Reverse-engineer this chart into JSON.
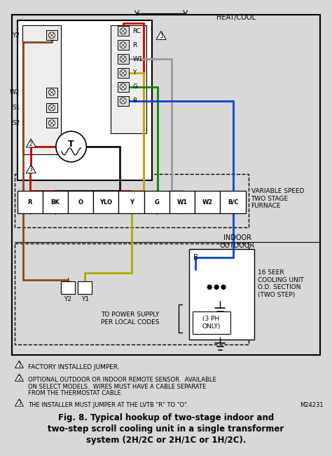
{
  "bg_color": "#d8d8d8",
  "white": "#ffffff",
  "title_line1": "Fig. 8. Typical hookup of two-stage indoor and",
  "title_line2": "two-step scroll cooling unit in a single transformer",
  "title_line3": "system (2H/2C or 2H/1C or 1H/2C).",
  "heat_cool_label": "HEAT/COOL",
  "thermostat_left_labels": [
    "Y2",
    "W2",
    "S1",
    "S2"
  ],
  "thermostat_right_labels": [
    "RC",
    "R",
    "W1",
    "Y",
    "G",
    "B"
  ],
  "furnace_terminals": [
    "R",
    "BK",
    "O",
    "YLO",
    "Y",
    "G",
    "W1",
    "W2",
    "B/C"
  ],
  "furnace_label": "VARIABLE SPEED\nTWO STAGE\nFURNACE",
  "indoor_label": "INDOOR",
  "outdoor_label": "OUTDOOR",
  "cooling_label": "16 SEER\nCOOLING UNIT\nO.D. SECTION\n(TWO STEP)",
  "outdoor_terminals": [
    "Y2",
    "Y1"
  ],
  "B_label": "B",
  "power_label": "TO POWER SUPPLY\nPER LOCAL CODES",
  "ph_label": "(3 PH\nONLY)",
  "note1": "FACTORY INSTALLED JUMPER.",
  "note2_line1": "OPTIONAL OUTDOOR OR INDOOR REMOTE SENSOR.  AVAILABLE",
  "note2_line2": "ON SELECT MODELS.  WIRES MUST HAVE A CABLE SEPARATE",
  "note2_line3": "FROM THE THERMOSTAT CABLE.",
  "note3": "THE INSTALLER MUST JUMPER AT THE LVTB \"R\" TO \"O\".",
  "note3_code": "M24231",
  "wire_red": "#cc0000",
  "wire_black": "#111111",
  "wire_brown": "#8B4513",
  "wire_yellow": "#ccaa00",
  "wire_green": "#008800",
  "wire_gray": "#999999",
  "wire_blue": "#0044dd",
  "wire_yg": "#aaaa00"
}
